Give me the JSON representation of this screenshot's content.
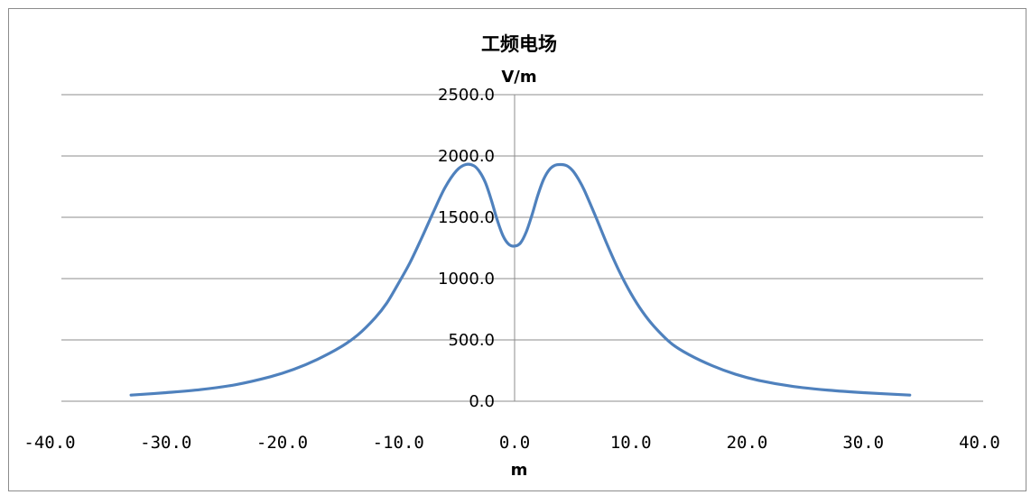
{
  "chart_data": {
    "type": "line",
    "title": "工频电场",
    "ylabel": "V/m",
    "xlabel": "m",
    "xlim": [
      -40,
      40
    ],
    "ylim": [
      0,
      2500
    ],
    "x_ticks": [
      "-40.0",
      "-30.0",
      "-20.0",
      "-10.0",
      "0.0",
      "10.0",
      "20.0",
      "30.0",
      "40.0"
    ],
    "y_ticks": [
      "0.0",
      "500.0",
      "1000.0",
      "1500.0",
      "2000.0",
      "2500.0"
    ],
    "grid": true,
    "legend": "none",
    "series_color": "#4f81bd",
    "series": [
      {
        "x": [
          -33,
          -30,
          -27,
          -24,
          -21,
          -19,
          -17,
          -15,
          -13.5,
          -12,
          -11,
          -10,
          -9,
          -8,
          -7,
          -6,
          -5,
          -4.2,
          -3.5,
          -3,
          -2.5,
          -2,
          -1.5,
          -1,
          -0.5,
          0,
          0.5,
          1,
          1.5,
          2,
          2.5,
          3,
          3.5,
          4,
          4.5,
          5,
          5.5,
          6,
          7,
          8,
          9,
          10,
          11,
          12,
          13.5,
          15,
          17,
          19,
          21,
          24,
          27,
          30,
          34
        ],
        "y": [
          50,
          70,
          95,
          135,
          200,
          260,
          340,
          440,
          540,
          680,
          800,
          960,
          1130,
          1330,
          1540,
          1740,
          1880,
          1930,
          1920,
          1870,
          1780,
          1640,
          1480,
          1350,
          1280,
          1265,
          1290,
          1380,
          1520,
          1680,
          1810,
          1890,
          1925,
          1930,
          1920,
          1880,
          1810,
          1720,
          1500,
          1270,
          1060,
          880,
          730,
          610,
          470,
          380,
          290,
          220,
          170,
          120,
          90,
          70,
          50
        ]
      }
    ]
  }
}
